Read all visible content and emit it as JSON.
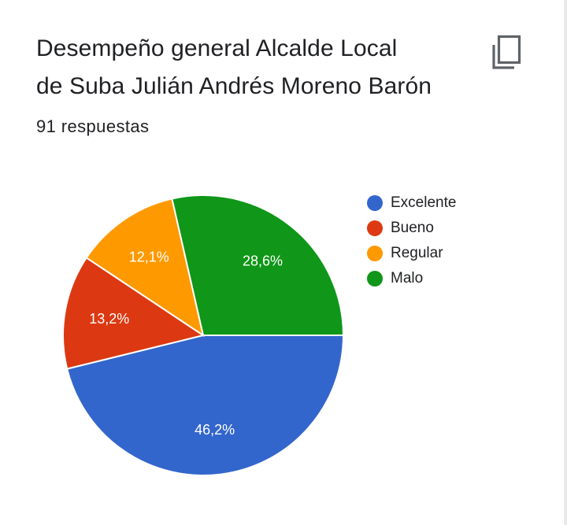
{
  "title_lines": [
    "Desempeño general Alcalde Local",
    "de Suba Julián Andrés Moreno Barón"
  ],
  "response_count": "91 respuestas",
  "copy_icon": "copy-icon",
  "chart_data": {
    "type": "pie",
    "title": "Desempeño general Alcalde Local de Suba Julián Andrés Moreno Barón",
    "categories": [
      "Excelente",
      "Bueno",
      "Regular",
      "Malo"
    ],
    "values": [
      46.2,
      13.2,
      12.1,
      28.6
    ],
    "labels": [
      "46,2%",
      "13,2%",
      "12,1%",
      "28,6%"
    ],
    "colors": [
      "#3366cc",
      "#dc3912",
      "#ff9900",
      "#109618"
    ],
    "legend_position": "right",
    "start_angle_deg": 0,
    "direction": "clockwise"
  }
}
